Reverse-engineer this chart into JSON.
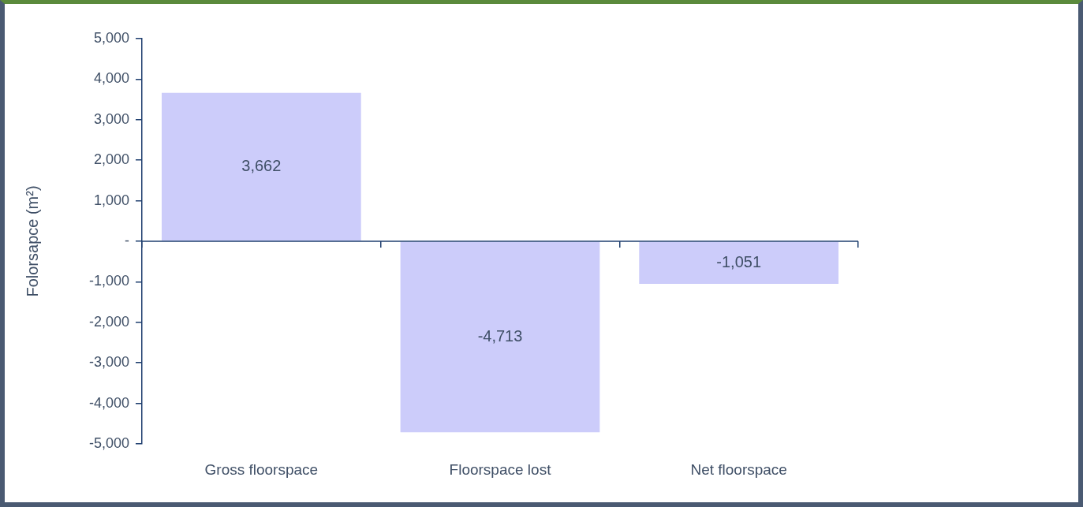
{
  "chart_data": {
    "type": "bar",
    "ylabel": "Folorsapce (m²)",
    "categories": [
      "Gross floorspace",
      "Floorspace lost",
      "Net floorspace"
    ],
    "values": [
      3662,
      -4713,
      -1051
    ],
    "color": "#ccccfa",
    "value_labels": [
      "3,662",
      "-4,713",
      "-1,051"
    ],
    "ylim": [
      -5000,
      5000
    ],
    "yticks": [
      {
        "value": -5000,
        "label": "-5,000"
      },
      {
        "value": -4000,
        "label": "-4,000"
      },
      {
        "value": -3000,
        "label": "-3,000"
      },
      {
        "value": -2000,
        "label": "-2,000"
      },
      {
        "value": -1000,
        "label": "-1,000"
      },
      {
        "value": 0,
        "label": "-"
      },
      {
        "value": 1000,
        "label": "1,000"
      },
      {
        "value": 2000,
        "label": "2,000"
      },
      {
        "value": 3000,
        "label": "3,000"
      },
      {
        "value": 4000,
        "label": "4,000"
      },
      {
        "value": 5000,
        "label": "5,000"
      }
    ],
    "ref_lines": [
      {
        "axis": "y",
        "value": 0,
        "color": "#1f3f6f"
      }
    ],
    "grid": false,
    "legend": false
  }
}
